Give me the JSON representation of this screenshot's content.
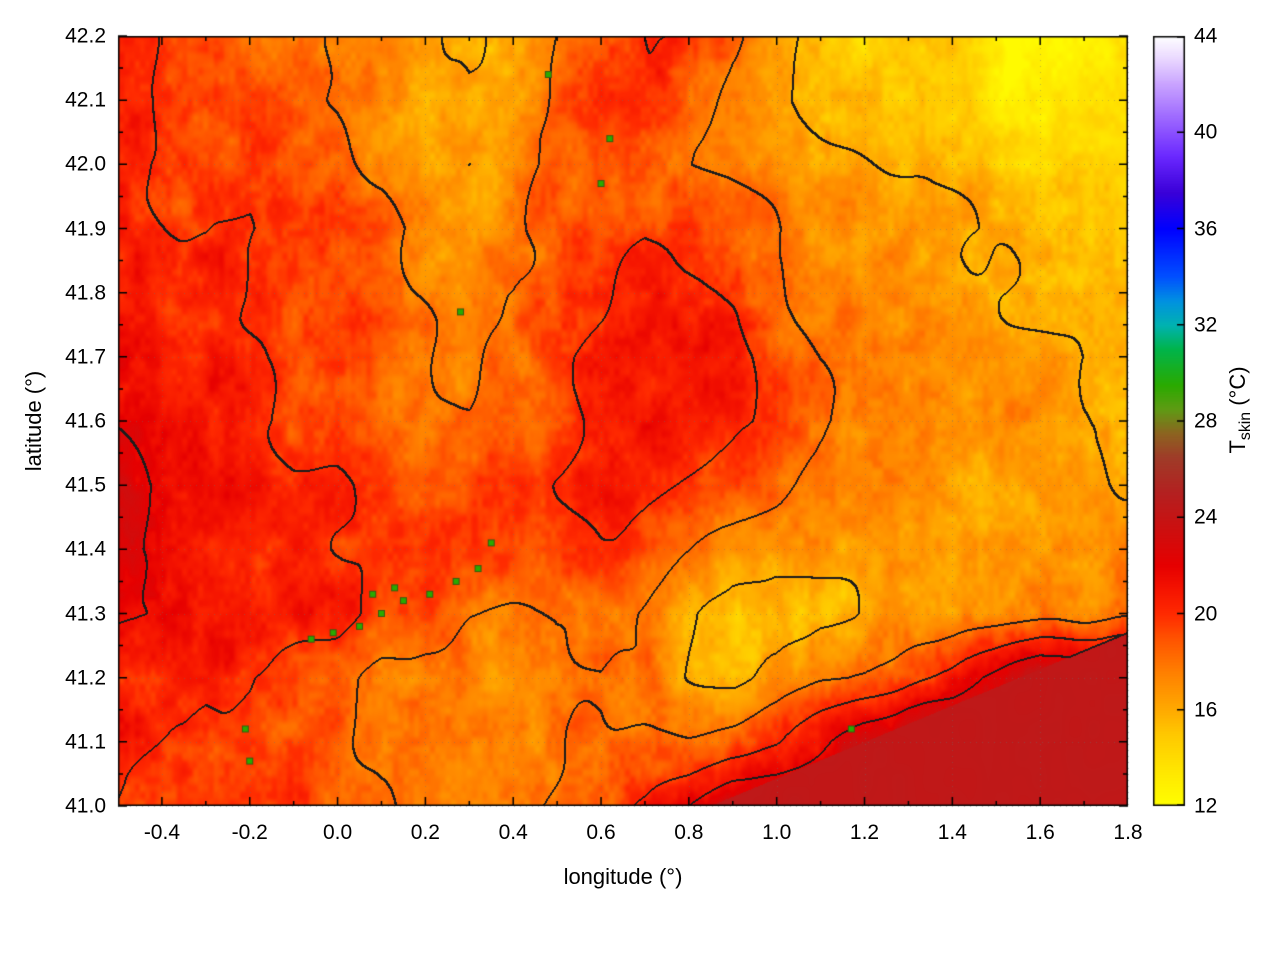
{
  "figure": {
    "background": "#ffffff",
    "frame_color": "#000000"
  },
  "chart_data": {
    "type": "heatmap",
    "title": "",
    "xlabel": "longitude (°)",
    "ylabel": "latitude (°)",
    "colorbar_label": {
      "prefix": "T",
      "subscript": "skin",
      "suffix": " (°C)"
    },
    "x_range": [
      -0.5,
      1.8
    ],
    "y_range": [
      41.0,
      42.2
    ],
    "color_range": [
      12,
      44
    ],
    "grid_on": true,
    "legend_position": "colorbar-right",
    "x_ticks": [
      {
        "v": -0.4,
        "label": "-0.4"
      },
      {
        "v": -0.2,
        "label": "-0.2"
      },
      {
        "v": 0.0,
        "label": "0.0"
      },
      {
        "v": 0.2,
        "label": "0.2"
      },
      {
        "v": 0.4,
        "label": "0.4"
      },
      {
        "v": 0.6,
        "label": "0.6"
      },
      {
        "v": 0.8,
        "label": "0.8"
      },
      {
        "v": 1.0,
        "label": "1.0"
      },
      {
        "v": 1.2,
        "label": "1.2"
      },
      {
        "v": 1.4,
        "label": "1.4"
      },
      {
        "v": 1.6,
        "label": "1.6"
      },
      {
        "v": 1.8,
        "label": "1.8"
      }
    ],
    "x_minor_step": 0.1,
    "y_ticks": [
      {
        "v": 41.0,
        "label": "41.0"
      },
      {
        "v": 41.1,
        "label": "41.1"
      },
      {
        "v": 41.2,
        "label": "41.2"
      },
      {
        "v": 41.3,
        "label": "41.3"
      },
      {
        "v": 41.4,
        "label": "41.4"
      },
      {
        "v": 41.5,
        "label": "41.5"
      },
      {
        "v": 41.6,
        "label": "41.6"
      },
      {
        "v": 41.7,
        "label": "41.7"
      },
      {
        "v": 41.8,
        "label": "41.8"
      },
      {
        "v": 41.9,
        "label": "41.9"
      },
      {
        "v": 42.0,
        "label": "42.0"
      },
      {
        "v": 42.1,
        "label": "42.1"
      },
      {
        "v": 42.2,
        "label": "42.2"
      }
    ],
    "cb_ticks": [
      {
        "v": 12,
        "label": "12"
      },
      {
        "v": 16,
        "label": "16"
      },
      {
        "v": 20,
        "label": "20"
      },
      {
        "v": 24,
        "label": "24"
      },
      {
        "v": 28,
        "label": "28"
      },
      {
        "v": 32,
        "label": "32"
      },
      {
        "v": 36,
        "label": "36"
      },
      {
        "v": 40,
        "label": "40"
      },
      {
        "v": 44,
        "label": "44"
      }
    ],
    "contour_levels": [
      16,
      18,
      20,
      22
    ],
    "contour_color": "#1c1c1c",
    "palette": [
      [
        12,
        "#ffff00"
      ],
      [
        13.5,
        "#ffe600"
      ],
      [
        15,
        "#ffc800"
      ],
      [
        16,
        "#ffaa00"
      ],
      [
        17.5,
        "#ff8200"
      ],
      [
        19,
        "#ff5200"
      ],
      [
        20,
        "#ff2a00"
      ],
      [
        21,
        "#f51400"
      ],
      [
        22,
        "#e60000"
      ],
      [
        23.5,
        "#cd0f0f"
      ],
      [
        25,
        "#b42020"
      ],
      [
        26.5,
        "#9f3c28"
      ],
      [
        27.5,
        "#8c6420"
      ],
      [
        28.5,
        "#5f9b14"
      ],
      [
        29.5,
        "#2aaa00"
      ],
      [
        31,
        "#00b44b"
      ],
      [
        32,
        "#00b2b2"
      ],
      [
        33,
        "#0091e1"
      ],
      [
        34,
        "#0050ff"
      ],
      [
        36,
        "#0000ff"
      ],
      [
        37.5,
        "#3a00d8"
      ],
      [
        39,
        "#6a28ff"
      ],
      [
        40.5,
        "#9a64ff"
      ],
      [
        42,
        "#c9a3ff"
      ],
      [
        43,
        "#e8d5ff"
      ],
      [
        44,
        "#ffffff"
      ]
    ],
    "temperature_grid": {
      "lon0": -0.5,
      "dlon": 0.1,
      "lat_top": 42.2,
      "dlat": 0.1,
      "values": [
        [
          20,
          20,
          19.5,
          19,
          19,
          18.5,
          17.5,
          16.5,
          16,
          16.5,
          18,
          19.5,
          20,
          19.5,
          18,
          17,
          16,
          15,
          14.5,
          14,
          13.5,
          13,
          12.8,
          12.6
        ],
        [
          20.5,
          20,
          19.5,
          19,
          18.5,
          18,
          17,
          15.8,
          15.8,
          16.5,
          18,
          19.5,
          19.5,
          19,
          17.5,
          16.5,
          15.8,
          15.2,
          14.8,
          14.2,
          13.8,
          13.4,
          13,
          12.8
        ],
        [
          20.5,
          20,
          20,
          19.5,
          19,
          18.5,
          17.5,
          16,
          15.5,
          16.5,
          18,
          18.5,
          18.5,
          18,
          17.5,
          17,
          16.5,
          16,
          15.5,
          15.2,
          14.8,
          14.4,
          14,
          13.6
        ],
        [
          21,
          20.5,
          20,
          20,
          19.5,
          19,
          18.5,
          17.5,
          17,
          17.5,
          18.5,
          19,
          19.5,
          19,
          18.5,
          18,
          17.5,
          17,
          16.5,
          16.2,
          16,
          15.6,
          15.2,
          14.8
        ],
        [
          21,
          21,
          20.5,
          20,
          19.5,
          19,
          18.5,
          18,
          17.5,
          18,
          19,
          19.5,
          20,
          20,
          19.5,
          18.5,
          18,
          17.5,
          17,
          16.8,
          16.5,
          16.2,
          16,
          15.8
        ],
        [
          21.5,
          21,
          20.5,
          20,
          19.5,
          19.5,
          19,
          18.5,
          18,
          18.5,
          19.5,
          20,
          20.5,
          20.5,
          20,
          19,
          18,
          17.5,
          17.2,
          17,
          16.8,
          16.5,
          16.2,
          16
        ],
        [
          21.5,
          21,
          21,
          20.5,
          20,
          19.5,
          19,
          19,
          18.5,
          19,
          19.5,
          20,
          20.5,
          20.5,
          20,
          19,
          18,
          17.3,
          17,
          16.8,
          16.5,
          16.3,
          16,
          16
        ],
        [
          22,
          21.5,
          21,
          20.5,
          20,
          20,
          19.5,
          19,
          19,
          19.5,
          20,
          20,
          20,
          19.5,
          19,
          18.5,
          17.5,
          17,
          16.7,
          16.5,
          16.3,
          16,
          16,
          16.2
        ],
        [
          22,
          21.5,
          21,
          21,
          20.5,
          20,
          19.5,
          19.5,
          19,
          19.5,
          19.5,
          19.5,
          19,
          18.5,
          18,
          17.5,
          17,
          16.8,
          16.5,
          16.3,
          16.2,
          16,
          16.2,
          16.5
        ],
        [
          22.5,
          22,
          22,
          21.5,
          21,
          20.5,
          19.5,
          18.5,
          18,
          18,
          18.5,
          18.5,
          18,
          17,
          15.5,
          15,
          16,
          16.5,
          16.5,
          16.5,
          16.5,
          16.8,
          17,
          17.5
        ],
        [
          21,
          20.5,
          20,
          20,
          19.5,
          19,
          17.5,
          17,
          16.5,
          17,
          17.5,
          18,
          17.5,
          16.5,
          16,
          16.5,
          17.5,
          18,
          19,
          20,
          22,
          24.3,
          24.3,
          24.3
        ],
        [
          20.5,
          20,
          19.5,
          19.5,
          19,
          18.5,
          17.5,
          17,
          17,
          17.5,
          18,
          18.5,
          18.5,
          18.5,
          19,
          19.5,
          21,
          23,
          24.3,
          24.3,
          24.3,
          24.3,
          24.3,
          24.3
        ],
        [
          20,
          19.5,
          19.5,
          19,
          19,
          18.5,
          18,
          17.5,
          17.5,
          18,
          18.5,
          19,
          20,
          22,
          24.3,
          24.3,
          24.3,
          24.3,
          24.3,
          24.3,
          24.3,
          24.3,
          24.3,
          24.3
        ]
      ]
    },
    "sea": {
      "temp": 24.3,
      "coast_from": [
        0.85,
        41.0
      ],
      "coast_to": [
        1.8,
        41.27
      ]
    },
    "green_spots": [
      [
        0.35,
        41.41
      ],
      [
        0.32,
        41.37
      ],
      [
        0.27,
        41.35
      ],
      [
        0.21,
        41.33
      ],
      [
        0.15,
        41.32
      ],
      [
        0.13,
        41.34
      ],
      [
        0.1,
        41.3
      ],
      [
        0.08,
        41.33
      ],
      [
        0.05,
        41.28
      ],
      [
        -0.01,
        41.27
      ],
      [
        -0.06,
        41.26
      ],
      [
        0.62,
        42.04
      ],
      [
        0.6,
        41.97
      ],
      [
        -0.2,
        41.07
      ],
      [
        -0.21,
        41.12
      ],
      [
        1.17,
        41.12
      ],
      [
        0.48,
        42.14
      ],
      [
        0.28,
        41.77
      ]
    ]
  }
}
